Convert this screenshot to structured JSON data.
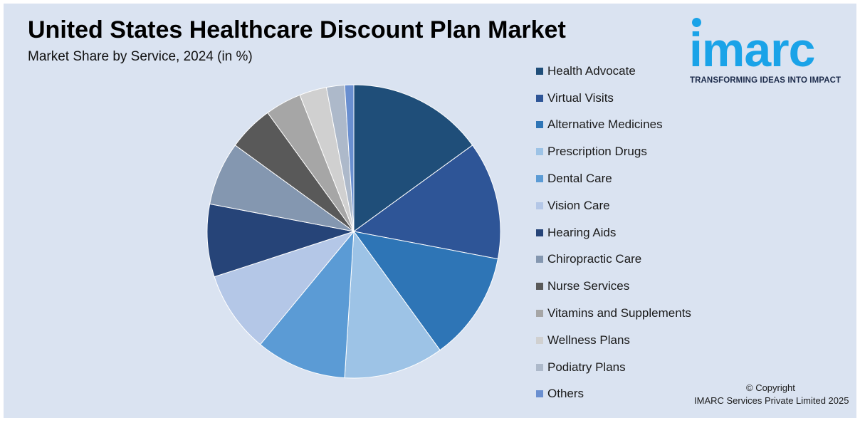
{
  "title": "United States Healthcare Discount Plan Market",
  "subtitle": "Market Share by Service, 2024 (in %)",
  "brand": {
    "logo_text": "imarc",
    "tagline": "TRANSFORMING IDEAS INTO IMPACT",
    "color": "#1aa3e8"
  },
  "footer": {
    "copyright": "© Copyright",
    "company": "IMARC Services Private Limited 2025"
  },
  "chart_data": {
    "type": "pie",
    "title": "United States Healthcare Discount Plan Market",
    "subtitle": "Market Share by Service, 2024 (in %)",
    "legend_position": "right",
    "start_angle_deg": 0,
    "direction": "clockwise",
    "categories": [
      "Health Advocate",
      "Virtual Visits",
      "Alternative Medicines",
      "Prescription Drugs",
      "Dental Care",
      "Vision Care",
      "Hearing Aids",
      "Chiropractic Care",
      "Nurse Services",
      "Vitamins and Supplements",
      "Wellness Plans",
      "Podiatry Plans",
      "Others"
    ],
    "values": [
      15,
      13,
      12,
      11,
      10,
      9,
      8,
      7,
      5,
      4,
      3,
      2,
      1
    ],
    "colors": [
      "#1f4e79",
      "#2e5597",
      "#2e75b6",
      "#9dc3e6",
      "#5b9bd5",
      "#b4c7e7",
      "#264478",
      "#8497b0",
      "#595959",
      "#a6a6a6",
      "#d0d0d0",
      "#adb9ca",
      "#6a8fd0"
    ]
  }
}
